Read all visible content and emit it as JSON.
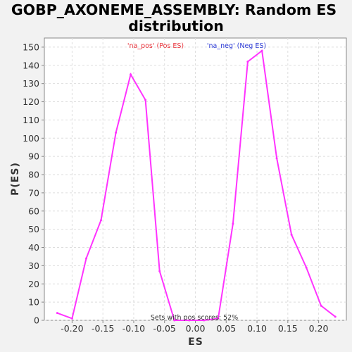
{
  "chart_data": {
    "type": "line",
    "title_lines": [
      "GOBP_AXONEME_ASSEMBLY: Random ES",
      "distribution"
    ],
    "xlabel": "ES",
    "ylabel": "P(ES)",
    "xlim": [
      -0.245,
      0.245
    ],
    "ylim": [
      0,
      155
    ],
    "xticks": [
      -0.2,
      -0.15,
      -0.1,
      -0.05,
      0.0,
      0.05,
      0.1,
      0.15,
      0.2
    ],
    "xtick_labels": [
      "-0.20",
      "-0.15",
      "-0.10",
      "-0.05",
      "0.00",
      "0.05",
      "0.10",
      "0.15",
      "0.20"
    ],
    "yticks": [
      0,
      10,
      20,
      30,
      40,
      50,
      60,
      70,
      80,
      90,
      100,
      110,
      120,
      130,
      140,
      150
    ],
    "ytick_labels": [
      "0",
      "10",
      "20",
      "30",
      "40",
      "50",
      "60",
      "70",
      "80",
      "90",
      "100",
      "110",
      "120",
      "130",
      "140",
      "150"
    ],
    "grid": true,
    "legend": {
      "pos": "'na_pos' (Pos ES)",
      "neg": "'na_neg' (Neg ES)",
      "pos_color": "#e8323a",
      "neg_color": "#2c3ad6"
    },
    "annotation": "Sets with pos scores: 52%",
    "series": [
      {
        "color": "#ff33ff",
        "x": [
          -0.224,
          -0.2,
          -0.177,
          -0.153,
          -0.129,
          -0.105,
          -0.081,
          -0.058,
          -0.034,
          -0.01,
          0.014,
          0.037,
          0.061,
          0.085,
          0.108,
          0.132,
          0.156,
          0.18,
          0.204,
          0.227
        ],
        "y": [
          4,
          1,
          34,
          55,
          103,
          135,
          121,
          27,
          0,
          0,
          0,
          1,
          53,
          142,
          148,
          89,
          47,
          29,
          8,
          2
        ]
      }
    ]
  }
}
